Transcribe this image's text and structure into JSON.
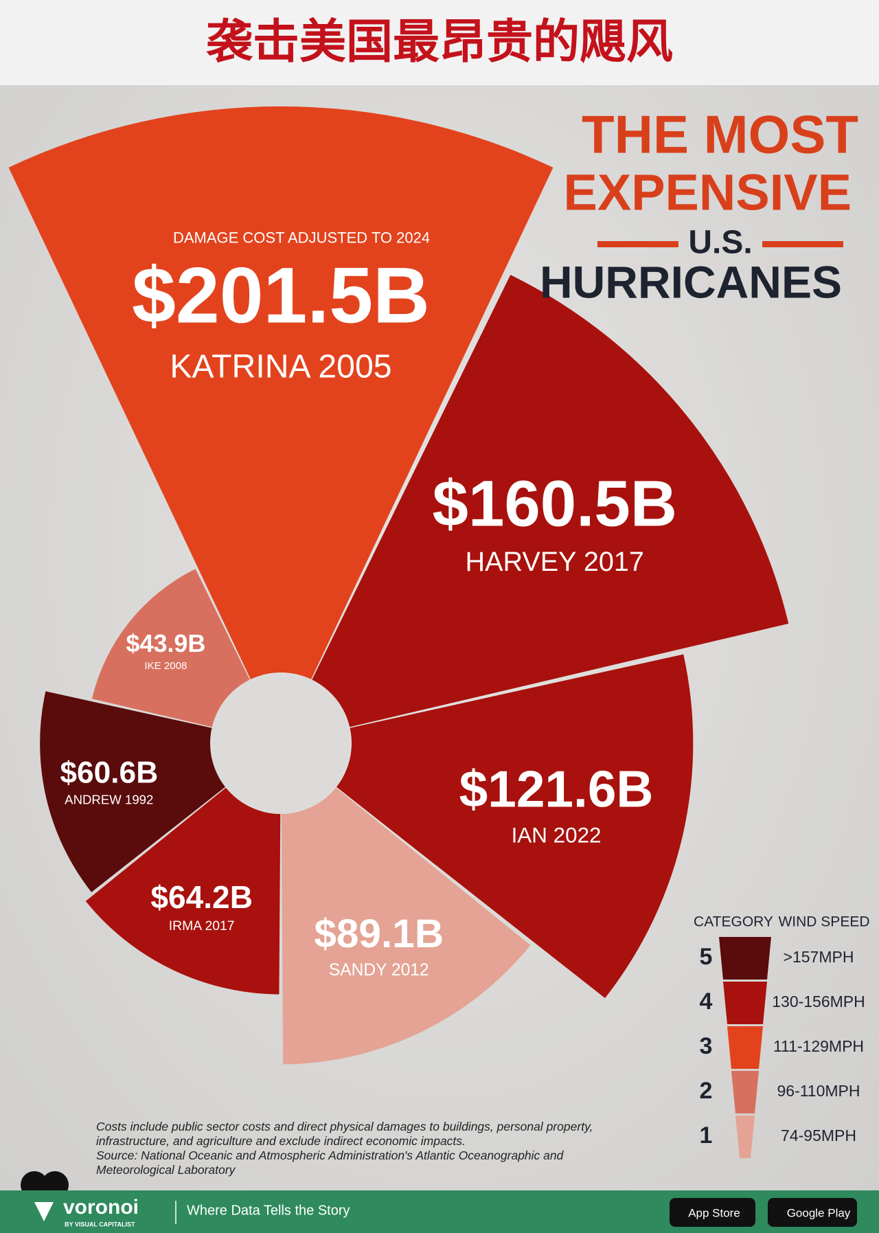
{
  "header": {
    "title": "袭击美国最昂贵的飓风"
  },
  "chart_data": {
    "type": "polar-area",
    "title_lines": [
      "THE MOST",
      "EXPENSIVE",
      "U.S.",
      "HURRICANES"
    ],
    "subtitle": "DAMAGE COST ADJUSTED TO 2024",
    "categories": [
      "KATRINA 2005",
      "HARVEY 2017",
      "IAN 2022",
      "SANDY 2012",
      "IRMA 2017",
      "ANDREW 1992",
      "IKE 2008"
    ],
    "values": [
      201.5,
      160.5,
      121.6,
      89.1,
      64.2,
      60.6,
      43.9
    ],
    "value_labels": [
      "$201.5B",
      "$160.5B",
      "$121.6B",
      "$89.1B",
      "$64.2B",
      "$60.6B",
      "$43.9B"
    ],
    "colors": [
      "#e2431d",
      "#a8110d",
      "#a8110d",
      "#e4a394",
      "#a8110d",
      "#5a0b0b",
      "#d8705f"
    ],
    "legend": {
      "title": "CATEGORY",
      "subtitle": "WIND SPEED",
      "items": [
        {
          "label": "5",
          "range": ">157MPH",
          "color": "#5a0b0b"
        },
        {
          "label": "4",
          "range": "130-156MPH",
          "color": "#a8110d"
        },
        {
          "label": "3",
          "range": "111-129MPH",
          "color": "#e2431d"
        },
        {
          "label": "2",
          "range": "96-110MPH",
          "color": "#d8705f"
        },
        {
          "label": "1",
          "range": "74-95MPH",
          "color": "#e4a394"
        }
      ]
    },
    "note": "Costs include public sector costs and direct physical damages to buildings, personal property, infrastructure, and agriculture and exclude indirect economic impacts.",
    "source": "Source: National Oceanic and Atmospheric Administration's Atlantic Oceanographic and Meteorological Laboratory"
  },
  "footer": {
    "brand": "voronoi",
    "tagline": "BY VISUAL CAPITALIST",
    "slogan": "Where Data Tells the Story",
    "buttons": [
      "App Store",
      "Google Play"
    ]
  }
}
